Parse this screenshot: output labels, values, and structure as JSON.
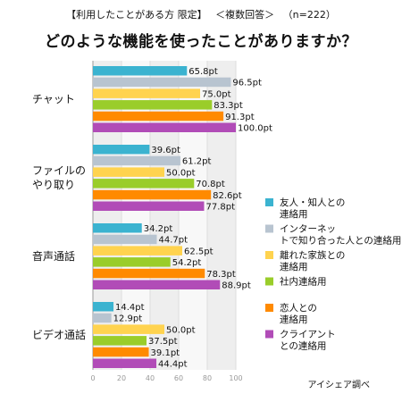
{
  "header": {
    "segment": "【利用したことがある方 限定】",
    "answer_type": "＜複数回答＞",
    "sample": "（n=222）",
    "question": "どのような機能を使ったことがありますか？"
  },
  "source": "アイシェア調べ",
  "colors": {
    "friends": "#3bb3d0",
    "internet": "#b8c4d0",
    "family": "#ffd34f",
    "work": "#9acd2a",
    "partner": "#ff8a00",
    "client": "#b14cb7"
  },
  "chart_data": {
    "type": "bar",
    "orientation": "horizontal",
    "categories": [
      "チャット",
      "ファイルの\nやり取り",
      "音声通話",
      "ビデオ通話"
    ],
    "xlim": [
      0,
      100
    ],
    "xticks": [
      0,
      20,
      40,
      60,
      80,
      100
    ],
    "value_suffix": "pt",
    "legend_position": "right",
    "series": [
      {
        "name": "友人・知人との連絡用",
        "color_key": "friends",
        "values": [
          65.8,
          39.6,
          34.2,
          14.4
        ]
      },
      {
        "name": "インターネットで知り合った人との連絡用",
        "color_key": "internet",
        "values": [
          96.5,
          61.2,
          44.7,
          12.9
        ]
      },
      {
        "name": "離れた家族との連絡用",
        "color_key": "family",
        "values": [
          75.0,
          50.0,
          62.5,
          50.0
        ]
      },
      {
        "name": "社内連絡用",
        "color_key": "work",
        "values": [
          83.3,
          70.8,
          54.2,
          37.5
        ]
      },
      {
        "name": "恋人との連絡用",
        "color_key": "partner",
        "values": [
          91.3,
          82.6,
          78.3,
          39.1
        ]
      },
      {
        "name": "クライアントとの連絡用",
        "color_key": "client",
        "values": [
          100.0,
          77.8,
          88.9,
          44.4
        ]
      }
    ]
  }
}
